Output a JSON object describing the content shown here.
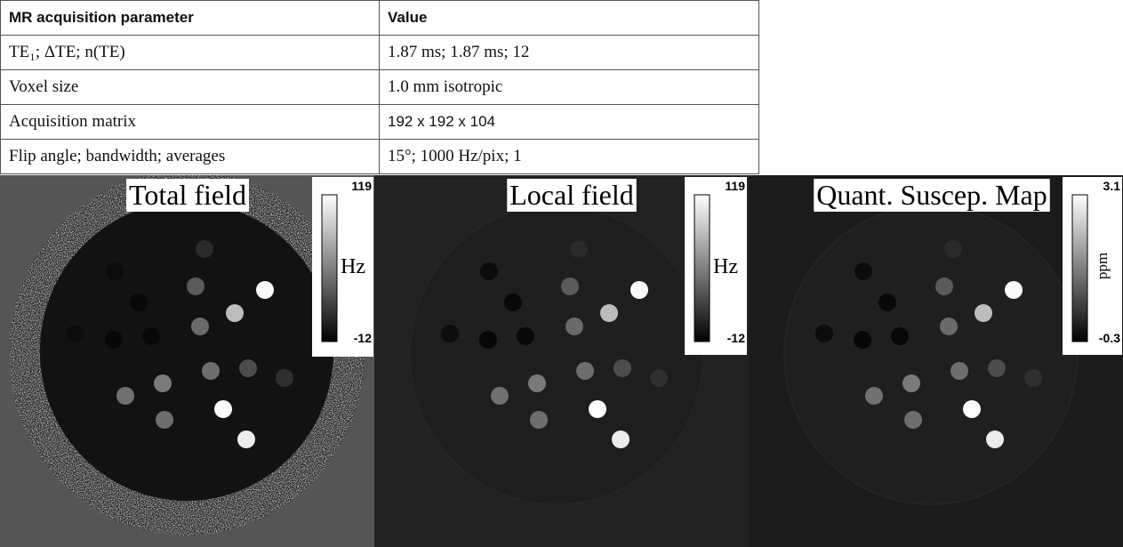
{
  "table": {
    "header": [
      "MR acquisition parameter",
      "Value"
    ],
    "rows": [
      [
        "TE₁; ΔTE; n(TE)",
        "1.87 ms; 1.87 ms; 12"
      ],
      [
        "Voxel size",
        "1.0 mm isotropic"
      ],
      [
        "Acquisition matrix",
        "192 x 192 x 104"
      ],
      [
        "Flip angle; bandwidth; averages",
        "15°; 1000  Hz/pix; 1"
      ]
    ]
  },
  "panels": [
    {
      "title": "Total field",
      "colorbar_max": "119",
      "colorbar_min": "-12",
      "unit": "Hz"
    },
    {
      "title": "Local field",
      "colorbar_max": "119",
      "colorbar_min": "-12",
      "unit": "Hz"
    },
    {
      "title": "Quant. Suscep. Map",
      "colorbar_max": "3.1",
      "colorbar_min": "-0.3",
      "unit": "ppm"
    }
  ]
}
